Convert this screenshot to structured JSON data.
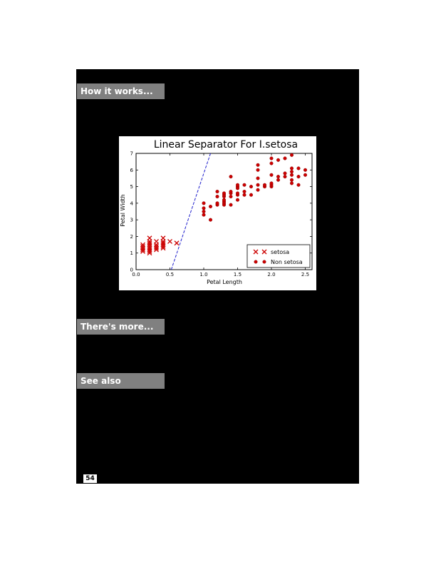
{
  "sections": {
    "how_it_works": "How it works...",
    "theres_more": "There's more...",
    "see_also": "See also"
  },
  "page_number": "54",
  "colors": {
    "page_background": "#000000",
    "heading_background": "#808080",
    "marker": "#cc0000",
    "separator": "#1f1fcc"
  },
  "chart_data": {
    "type": "scatter",
    "title": "Linear Separator For I.setosa",
    "xlabel": "Petal Length",
    "ylabel": "Petal Width",
    "xlim": [
      0.0,
      2.6
    ],
    "ylim": [
      0,
      7
    ],
    "x_ticks": [
      "0.0",
      "0.5",
      "1.0",
      "1.5",
      "2.0",
      "2.5"
    ],
    "y_ticks": [
      "0",
      "1",
      "2",
      "3",
      "4",
      "5",
      "6",
      "7"
    ],
    "grid": false,
    "legend_position": "bottom-right",
    "series": [
      {
        "name": "setosa",
        "marker": "x",
        "points": [
          [
            0.1,
            1.4
          ],
          [
            0.1,
            1.2
          ],
          [
            0.1,
            1.5
          ],
          [
            0.1,
            1.1
          ],
          [
            0.1,
            1.3
          ],
          [
            0.2,
            1.0
          ],
          [
            0.2,
            1.2
          ],
          [
            0.2,
            1.3
          ],
          [
            0.2,
            1.4
          ],
          [
            0.2,
            1.5
          ],
          [
            0.2,
            1.6
          ],
          [
            0.2,
            1.7
          ],
          [
            0.2,
            1.9
          ],
          [
            0.2,
            1.1
          ],
          [
            0.3,
            1.3
          ],
          [
            0.3,
            1.4
          ],
          [
            0.3,
            1.7
          ],
          [
            0.3,
            1.5
          ],
          [
            0.3,
            1.2
          ],
          [
            0.4,
            1.5
          ],
          [
            0.4,
            1.3
          ],
          [
            0.4,
            1.7
          ],
          [
            0.4,
            1.9
          ],
          [
            0.4,
            1.6
          ],
          [
            0.4,
            1.4
          ],
          [
            0.5,
            1.7
          ],
          [
            0.6,
            1.6
          ]
        ]
      },
      {
        "name": "Non setosa",
        "marker": "o",
        "points": [
          [
            1.0,
            3.5
          ],
          [
            1.0,
            3.7
          ],
          [
            1.0,
            3.3
          ],
          [
            1.0,
            4.0
          ],
          [
            1.1,
            3.0
          ],
          [
            1.1,
            3.8
          ],
          [
            1.2,
            3.9
          ],
          [
            1.2,
            4.0
          ],
          [
            1.2,
            4.4
          ],
          [
            1.2,
            4.7
          ],
          [
            1.3,
            3.9
          ],
          [
            1.3,
            4.0
          ],
          [
            1.3,
            4.1
          ],
          [
            1.3,
            4.2
          ],
          [
            1.3,
            4.4
          ],
          [
            1.3,
            4.5
          ],
          [
            1.3,
            4.6
          ],
          [
            1.4,
            3.9
          ],
          [
            1.4,
            4.4
          ],
          [
            1.4,
            4.6
          ],
          [
            1.4,
            4.7
          ],
          [
            1.4,
            5.6
          ],
          [
            1.5,
            4.2
          ],
          [
            1.5,
            4.5
          ],
          [
            1.5,
            4.6
          ],
          [
            1.5,
            4.9
          ],
          [
            1.5,
            5.0
          ],
          [
            1.5,
            5.1
          ],
          [
            1.6,
            4.5
          ],
          [
            1.6,
            4.7
          ],
          [
            1.6,
            5.1
          ],
          [
            1.7,
            4.5
          ],
          [
            1.7,
            5.0
          ],
          [
            1.8,
            4.8
          ],
          [
            1.8,
            5.1
          ],
          [
            1.8,
            5.5
          ],
          [
            1.8,
            6.0
          ],
          [
            1.8,
            6.3
          ],
          [
            1.9,
            5.0
          ],
          [
            1.9,
            5.1
          ],
          [
            2.0,
            5.0
          ],
          [
            2.0,
            5.1
          ],
          [
            2.0,
            5.2
          ],
          [
            2.0,
            5.7
          ],
          [
            2.0,
            6.4
          ],
          [
            2.0,
            6.7
          ],
          [
            2.1,
            5.4
          ],
          [
            2.1,
            5.6
          ],
          [
            2.1,
            6.6
          ],
          [
            2.2,
            5.6
          ],
          [
            2.2,
            5.8
          ],
          [
            2.2,
            6.7
          ],
          [
            2.3,
            5.2
          ],
          [
            2.3,
            5.4
          ],
          [
            2.3,
            5.7
          ],
          [
            2.3,
            5.9
          ],
          [
            2.3,
            6.1
          ],
          [
            2.3,
            6.9
          ],
          [
            2.4,
            5.1
          ],
          [
            2.4,
            5.6
          ],
          [
            2.4,
            6.1
          ],
          [
            2.5,
            5.7
          ],
          [
            2.5,
            6.0
          ]
        ]
      }
    ],
    "separator_line": [
      [
        0.52,
        0.0
      ],
      [
        1.1,
        7.0
      ]
    ]
  }
}
